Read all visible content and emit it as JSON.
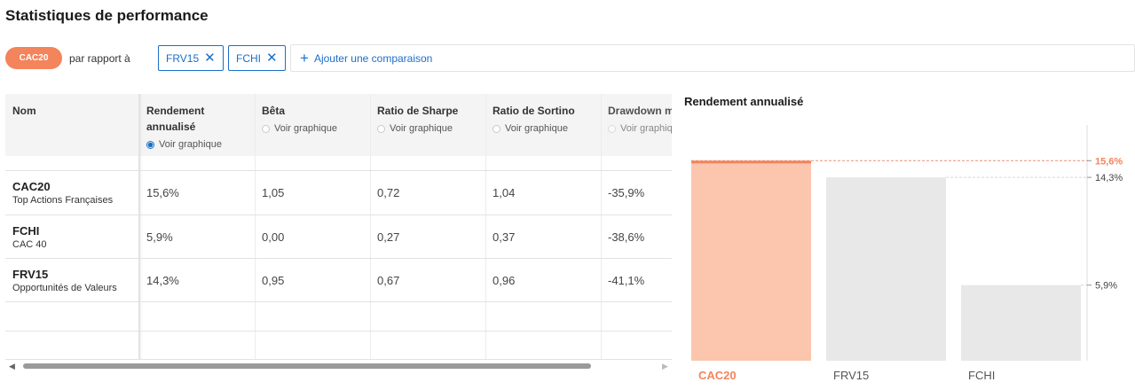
{
  "page": {
    "title": "Statistiques de performance"
  },
  "comparison": {
    "main_chip": "CAC20",
    "versus_label": "par rapport à",
    "compare_chips": [
      {
        "label": "FRV15",
        "remove_glyph": "✕"
      },
      {
        "label": "FCHI",
        "remove_glyph": "✕"
      }
    ],
    "add_label": "Ajouter une comparaison",
    "add_glyph": "+"
  },
  "table": {
    "columns": [
      {
        "label": "Nom",
        "radio": null
      },
      {
        "label": "Rendement annualisé",
        "radio": "Voir graphique",
        "selected": true
      },
      {
        "label": "Bêta",
        "radio": "Voir graphique",
        "selected": false
      },
      {
        "label": "Ratio de Sharpe",
        "radio": "Voir graphique",
        "selected": false
      },
      {
        "label": "Ratio de Sortino",
        "radio": "Voir graphique",
        "selected": false
      },
      {
        "label": "Drawdown max",
        "radio": "Voir graphique",
        "selected": false
      }
    ],
    "rows": [
      {
        "code": "CAC20",
        "name": "Top Actions Françaises",
        "values": [
          "15,6%",
          "1,05",
          "0,72",
          "1,04",
          "-35,9%"
        ]
      },
      {
        "code": "FCHI",
        "name": "CAC 40",
        "values": [
          "5,9%",
          "0,00",
          "0,27",
          "0,37",
          "-38,6%"
        ]
      },
      {
        "code": "FRV15",
        "name": "Opportunités de Valeurs",
        "values": [
          "14,3%",
          "0,95",
          "0,67",
          "0,96",
          "-41,1%"
        ]
      }
    ]
  },
  "scroll": {
    "left_glyph": "◀",
    "right_glyph": "▶"
  },
  "chart_data": {
    "type": "bar",
    "title": "Rendement annualisé",
    "categories": [
      "CAC20",
      "FRV15",
      "FCHI"
    ],
    "values": [
      15.6,
      14.3,
      5.9
    ],
    "value_labels": [
      "15,6%",
      "14,3%",
      "5,9%"
    ],
    "highlight_index": 0,
    "ylim": [
      0,
      18.8
    ],
    "grid": false,
    "colors": {
      "highlight": "#fbc5ae",
      "highlight_top": "#f3845b",
      "other": "#e8e8e8",
      "accent_text": "#f3845b",
      "guide": "#e88f78"
    }
  },
  "colors": {
    "accent": "#f3845b",
    "link": "#1a6fc9"
  }
}
